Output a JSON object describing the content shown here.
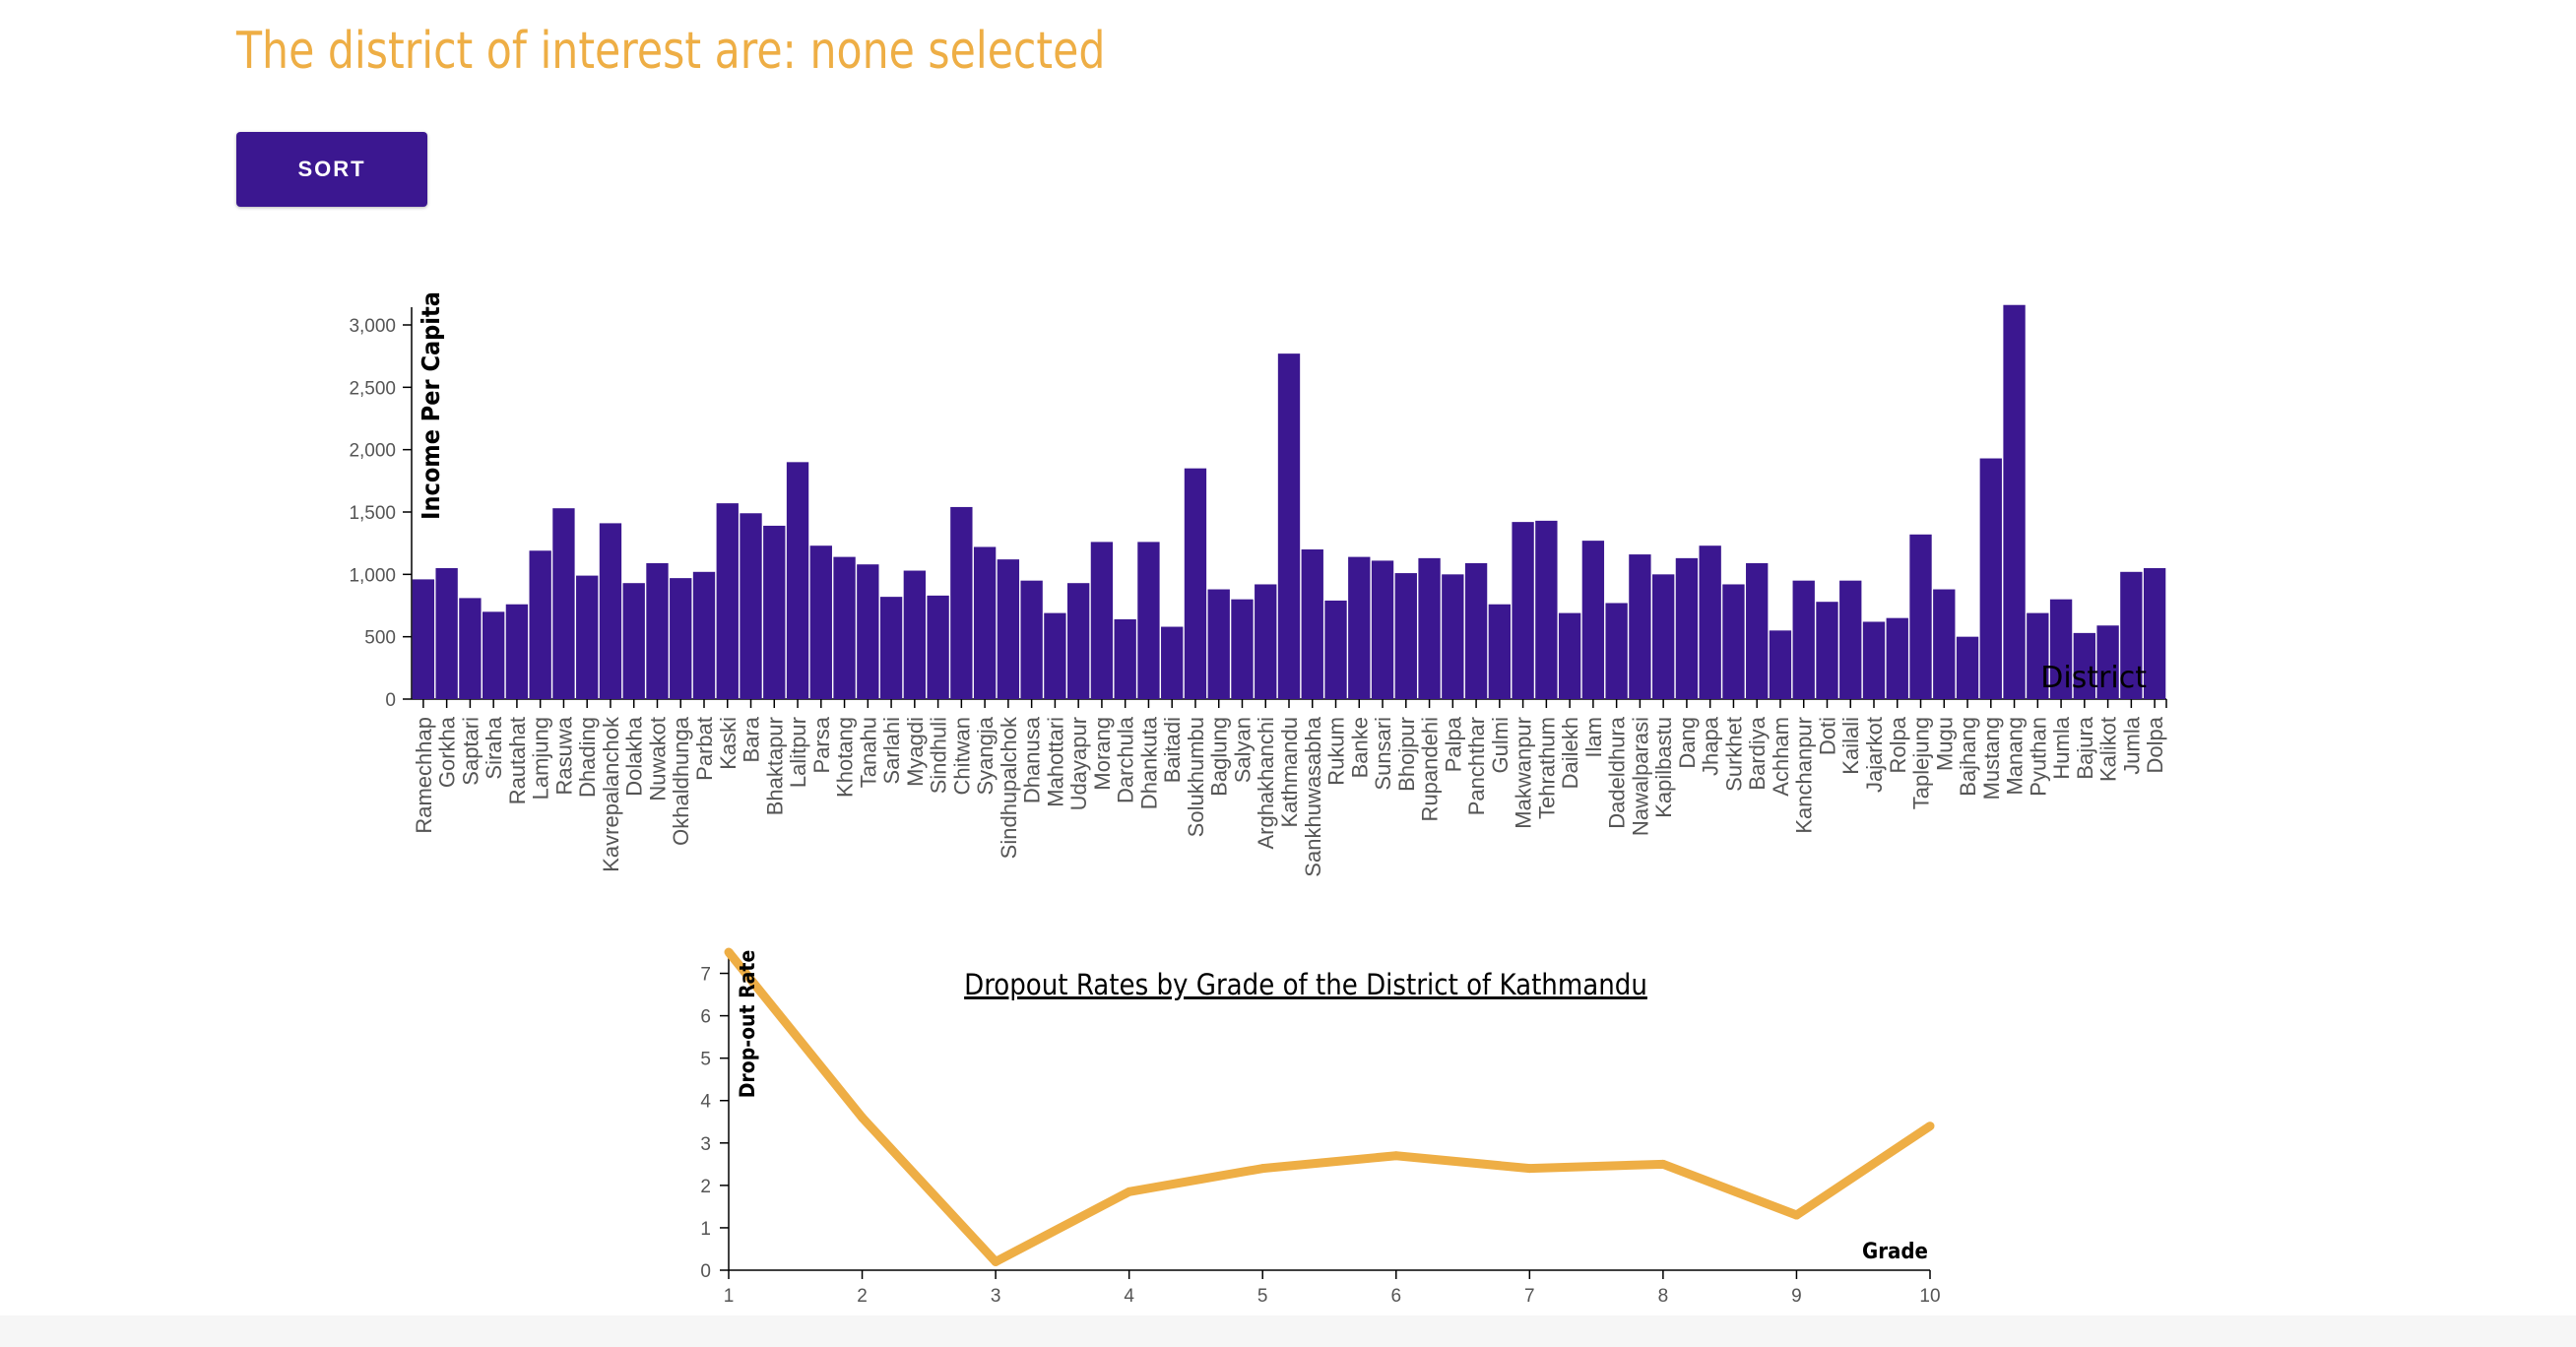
{
  "header": {
    "title": "The district of interest are: none selected",
    "sort_label": "SORT"
  },
  "colors": {
    "title": "#eeae45",
    "button": "#3b1790",
    "bar": "#3b1790",
    "line": "#eeae45"
  },
  "chart_data": [
    {
      "type": "bar",
      "ylabel": "Income Per Capita",
      "xlabel": "District",
      "ylim": [
        0,
        3000
      ],
      "yticks": [
        0,
        500,
        1000,
        1500,
        2000,
        2500,
        3000
      ],
      "ytick_labels": [
        "0",
        "500",
        "1,000",
        "1,500",
        "2,000",
        "2,500",
        "3,000"
      ],
      "categories": [
        "Ramechhap",
        "Gorkha",
        "Saptari",
        "Siraha",
        "Rautahat",
        "Lamjung",
        "Rasuwa",
        "Dhading",
        "Kavrepalanchok",
        "Dolakha",
        "Nuwakot",
        "Okhaldhunga",
        "Parbat",
        "Kaski",
        "Bara",
        "Bhaktapur",
        "Lalitpur",
        "Parsa",
        "Khotang",
        "Tanahu",
        "Sarlahi",
        "Myagdi",
        "Sindhuli",
        "Chitwan",
        "Syangja",
        "Sindhupalchok",
        "Dhanusa",
        "Mahottari",
        "Udayapur",
        "Morang",
        "Darchula",
        "Dhankuta",
        "Baitadi",
        "Solukhumbu",
        "Baglung",
        "Salyan",
        "Arghakhanchi",
        "Kathmandu",
        "Sankhuwasabha",
        "Rukum",
        "Banke",
        "Sunsari",
        "Bhojpur",
        "Rupandehi",
        "Palpa",
        "Panchthar",
        "Gulmi",
        "Makwanpur",
        "Tehrathum",
        "Dailekh",
        "Ilam",
        "Dadeldhura",
        "Nawalparasi",
        "Kapilbastu",
        "Dang",
        "Jhapa",
        "Surkhet",
        "Bardiya",
        "Achham",
        "Kanchanpur",
        "Doti",
        "Kailali",
        "Jajarkot",
        "Rolpa",
        "Taplejung",
        "Mugu",
        "Bajhang",
        "Mustang",
        "Manang",
        "Pyuthan",
        "Humla",
        "Bajura",
        "Kalikot",
        "Jumla",
        "Dolpa"
      ],
      "values": [
        960,
        1050,
        810,
        700,
        760,
        1190,
        1530,
        990,
        1410,
        930,
        1090,
        970,
        1020,
        1570,
        1490,
        1390,
        1900,
        1230,
        1140,
        1080,
        820,
        1030,
        830,
        1540,
        1220,
        1120,
        950,
        690,
        930,
        1260,
        640,
        1260,
        580,
        1850,
        880,
        800,
        920,
        2770,
        1200,
        790,
        1140,
        1110,
        1010,
        1130,
        1000,
        1090,
        760,
        1420,
        1430,
        690,
        1270,
        770,
        1160,
        1000,
        1130,
        1230,
        920,
        1090,
        550,
        950,
        780,
        950,
        620,
        650,
        1320,
        880,
        500,
        1930,
        3160,
        690,
        800,
        530,
        590,
        1020,
        1050
      ]
    },
    {
      "type": "line",
      "title": "Dropout Rates by Grade of the District of Kathmandu",
      "xlabel": "Grade",
      "ylabel": "Drop-out Rate",
      "xlim": [
        1,
        10
      ],
      "ylim": [
        0,
        7.5
      ],
      "xticks": [
        1,
        2,
        3,
        4,
        5,
        6,
        7,
        8,
        9,
        10
      ],
      "yticks": [
        0,
        1,
        2,
        3,
        4,
        5,
        6,
        7
      ],
      "x": [
        1,
        2,
        3,
        4,
        5,
        6,
        7,
        8,
        9,
        10
      ],
      "y": [
        7.5,
        3.6,
        0.2,
        1.85,
        2.4,
        2.7,
        2.4,
        2.5,
        1.3,
        3.4
      ]
    }
  ]
}
